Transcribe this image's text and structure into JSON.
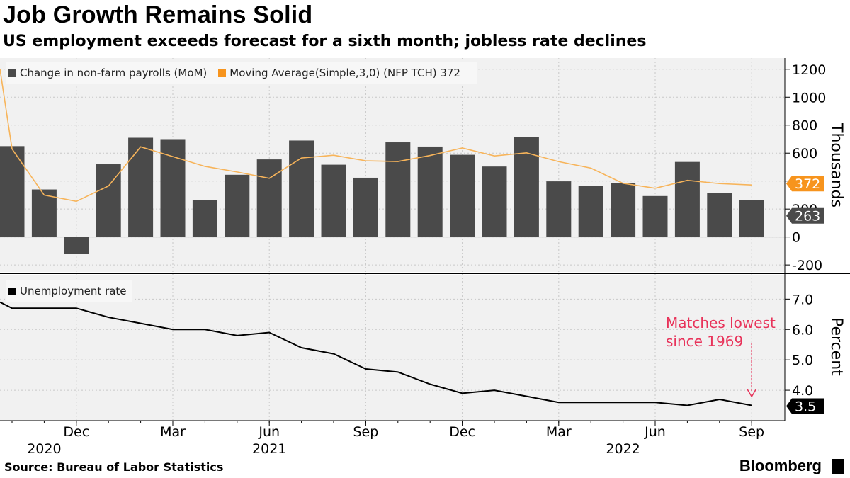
{
  "header": {
    "title": "Job Growth Remains Solid",
    "subtitle": "US employment exceeds forecast for a sixth month; jobless rate declines"
  },
  "footer": {
    "source": "Source: Bureau of Labor Statistics",
    "brand": "Bloomberg"
  },
  "chart_data": [
    {
      "type": "bar",
      "legend": [
        {
          "label": "Change in non-farm payrolls (MoM)",
          "color": "#4a4a4a"
        },
        {
          "label": "Moving Average(Simple,3,0) (NFP TCH) 372",
          "color": "#f7941d"
        }
      ],
      "x": [
        "2020-10",
        "2020-11",
        "2020-12",
        "2021-01",
        "2021-02",
        "2021-03",
        "2021-04",
        "2021-05",
        "2021-06",
        "2021-07",
        "2021-08",
        "2021-09",
        "2021-10",
        "2021-11",
        "2021-12",
        "2022-01",
        "2022-02",
        "2022-03",
        "2022-04",
        "2022-05",
        "2022-06",
        "2022-07",
        "2022-08",
        "2022-09"
      ],
      "series": [
        {
          "name": "Change in non-farm payrolls (MoM)",
          "type": "bar",
          "values": [
            650,
            340,
            -120,
            520,
            710,
            700,
            265,
            445,
            555,
            690,
            517,
            424,
            677,
            647,
            588,
            504,
            714,
            398,
            368,
            386,
            293,
            537,
            315,
            263
          ]
        },
        {
          "name": "Moving Average(Simple,3,0) (NFP TCH) 372",
          "type": "line",
          "values": [
            630,
            300,
            255,
            365,
            645,
            575,
            505,
            465,
            420,
            565,
            585,
            545,
            540,
            583,
            637,
            580,
            602,
            539,
            493,
            384,
            349,
            405,
            382,
            372
          ]
        }
      ],
      "start_value": 1200,
      "ylabel": "Thousands",
      "yticks": [
        -200,
        0,
        200,
        400,
        600,
        800,
        1000,
        1200
      ],
      "ylim": [
        -250,
        1280
      ],
      "end_labels": [
        {
          "text": "372",
          "color": "#f7941d"
        },
        {
          "text": "263",
          "color": "#4a4a4a"
        }
      ]
    },
    {
      "type": "line",
      "legend": [
        {
          "label": "Unemployment rate",
          "color": "#000000"
        }
      ],
      "x": [
        "2020-10",
        "2020-11",
        "2020-12",
        "2021-01",
        "2021-02",
        "2021-03",
        "2021-04",
        "2021-05",
        "2021-06",
        "2021-07",
        "2021-08",
        "2021-09",
        "2021-10",
        "2021-11",
        "2021-12",
        "2022-01",
        "2022-02",
        "2022-03",
        "2022-04",
        "2022-05",
        "2022-06",
        "2022-07",
        "2022-08",
        "2022-09"
      ],
      "series": [
        {
          "name": "Unemployment rate",
          "values": [
            6.7,
            6.7,
            6.7,
            6.4,
            6.2,
            6.0,
            6.0,
            5.8,
            5.9,
            5.4,
            5.2,
            4.7,
            4.6,
            4.2,
            3.9,
            4.0,
            3.8,
            3.6,
            3.6,
            3.6,
            3.6,
            3.5,
            3.7,
            3.5
          ]
        }
      ],
      "start_value": 6.9,
      "ylabel": "Percent",
      "yticks": [
        4.0,
        5.0,
        6.0,
        7.0
      ],
      "ylim": [
        3.0,
        7.8
      ],
      "end_labels": [
        {
          "text": "3.5",
          "color": "#000000"
        }
      ],
      "annotation": {
        "text": [
          "Matches lowest",
          "since 1969"
        ],
        "color": "#e8335a"
      },
      "xticks": [
        "Dec",
        "Mar",
        "Jun",
        "Sep",
        "Dec",
        "Mar",
        "Jun",
        "Sep"
      ],
      "xtick_months": [
        "2020-12",
        "2021-03",
        "2021-06",
        "2021-09",
        "2021-12",
        "2022-03",
        "2022-06",
        "2022-09"
      ],
      "years": [
        {
          "label": "2020",
          "month": "2020-11"
        },
        {
          "label": "2021",
          "month": "2021-06"
        },
        {
          "label": "2022",
          "month": "2022-05"
        }
      ]
    }
  ]
}
